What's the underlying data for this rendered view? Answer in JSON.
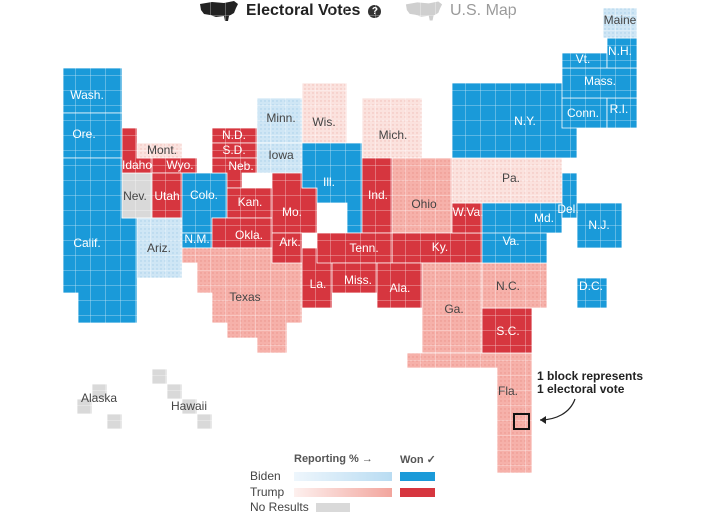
{
  "toggle": {
    "electoral_label": "Electoral Votes",
    "help_glyph": "?",
    "map_label": "U.S. Map"
  },
  "legend": {
    "reporting_label": "Reporting % →",
    "won_label": "Won ✓",
    "biden_label": "Biden",
    "trump_label": "Trump",
    "no_results_label": "No Results"
  },
  "annotation": {
    "line1": "1 block represents",
    "line2": "1 electoral vote"
  },
  "colors": {
    "biden_won": "#1a9ad9",
    "biden_partial": "#cfe6f5",
    "trump_won": "#d6363f",
    "trump_partial": "#f6b1aa",
    "trump_light": "#fbe2de",
    "no_results": "#d9d9d9"
  },
  "states": [
    {
      "abbr": "Wash.",
      "status": "biden_won"
    },
    {
      "abbr": "Ore.",
      "status": "biden_won"
    },
    {
      "abbr": "Calif.",
      "status": "biden_won"
    },
    {
      "abbr": "Nev.",
      "status": "no_results"
    },
    {
      "abbr": "Idaho",
      "status": "trump_won"
    },
    {
      "abbr": "Mont.",
      "status": "trump_light"
    },
    {
      "abbr": "Wyo.",
      "status": "trump_won"
    },
    {
      "abbr": "Utah",
      "status": "trump_won"
    },
    {
      "abbr": "Ariz.",
      "status": "biden_partial"
    },
    {
      "abbr": "Colo.",
      "status": "biden_won"
    },
    {
      "abbr": "N.M.",
      "status": "biden_won"
    },
    {
      "abbr": "N.D.",
      "status": "trump_won"
    },
    {
      "abbr": "S.D.",
      "status": "trump_won"
    },
    {
      "abbr": "Neb.",
      "status": "trump_won"
    },
    {
      "abbr": "Kan.",
      "status": "trump_won"
    },
    {
      "abbr": "Okla.",
      "status": "trump_won"
    },
    {
      "abbr": "Texas",
      "status": "trump_partial"
    },
    {
      "abbr": "Minn.",
      "status": "biden_partial"
    },
    {
      "abbr": "Iowa",
      "status": "biden_partial"
    },
    {
      "abbr": "Mo.",
      "status": "trump_won"
    },
    {
      "abbr": "Ark.",
      "status": "trump_won"
    },
    {
      "abbr": "La.",
      "status": "trump_won"
    },
    {
      "abbr": "Wis.",
      "status": "trump_light"
    },
    {
      "abbr": "Ill.",
      "status": "biden_won"
    },
    {
      "abbr": "Mich.",
      "status": "trump_light"
    },
    {
      "abbr": "Ind.",
      "status": "trump_won"
    },
    {
      "abbr": "Ohio",
      "status": "trump_partial"
    },
    {
      "abbr": "Ky.",
      "status": "trump_won"
    },
    {
      "abbr": "Tenn.",
      "status": "trump_won"
    },
    {
      "abbr": "Miss.",
      "status": "trump_won"
    },
    {
      "abbr": "Ala.",
      "status": "trump_won"
    },
    {
      "abbr": "Ga.",
      "status": "trump_partial"
    },
    {
      "abbr": "Fla.",
      "status": "trump_partial"
    },
    {
      "abbr": "S.C.",
      "status": "trump_won"
    },
    {
      "abbr": "N.C.",
      "status": "trump_partial"
    },
    {
      "abbr": "Va.",
      "status": "biden_won"
    },
    {
      "abbr": "W.Va.",
      "status": "trump_won"
    },
    {
      "abbr": "Pa.",
      "status": "trump_light"
    },
    {
      "abbr": "Md.",
      "status": "biden_won"
    },
    {
      "abbr": "Del.",
      "status": "biden_won"
    },
    {
      "abbr": "N.J.",
      "status": "biden_won"
    },
    {
      "abbr": "N.Y.",
      "status": "biden_won"
    },
    {
      "abbr": "Conn.",
      "status": "biden_won"
    },
    {
      "abbr": "R.I.",
      "status": "biden_won"
    },
    {
      "abbr": "Mass.",
      "status": "biden_won"
    },
    {
      "abbr": "Vt.",
      "status": "biden_won"
    },
    {
      "abbr": "N.H.",
      "status": "biden_won"
    },
    {
      "abbr": "Maine",
      "status": "biden_partial"
    },
    {
      "abbr": "D.C.",
      "status": "biden_won"
    },
    {
      "abbr": "Alaska",
      "status": "no_results"
    },
    {
      "abbr": "Hawaii",
      "status": "no_results"
    }
  ]
}
